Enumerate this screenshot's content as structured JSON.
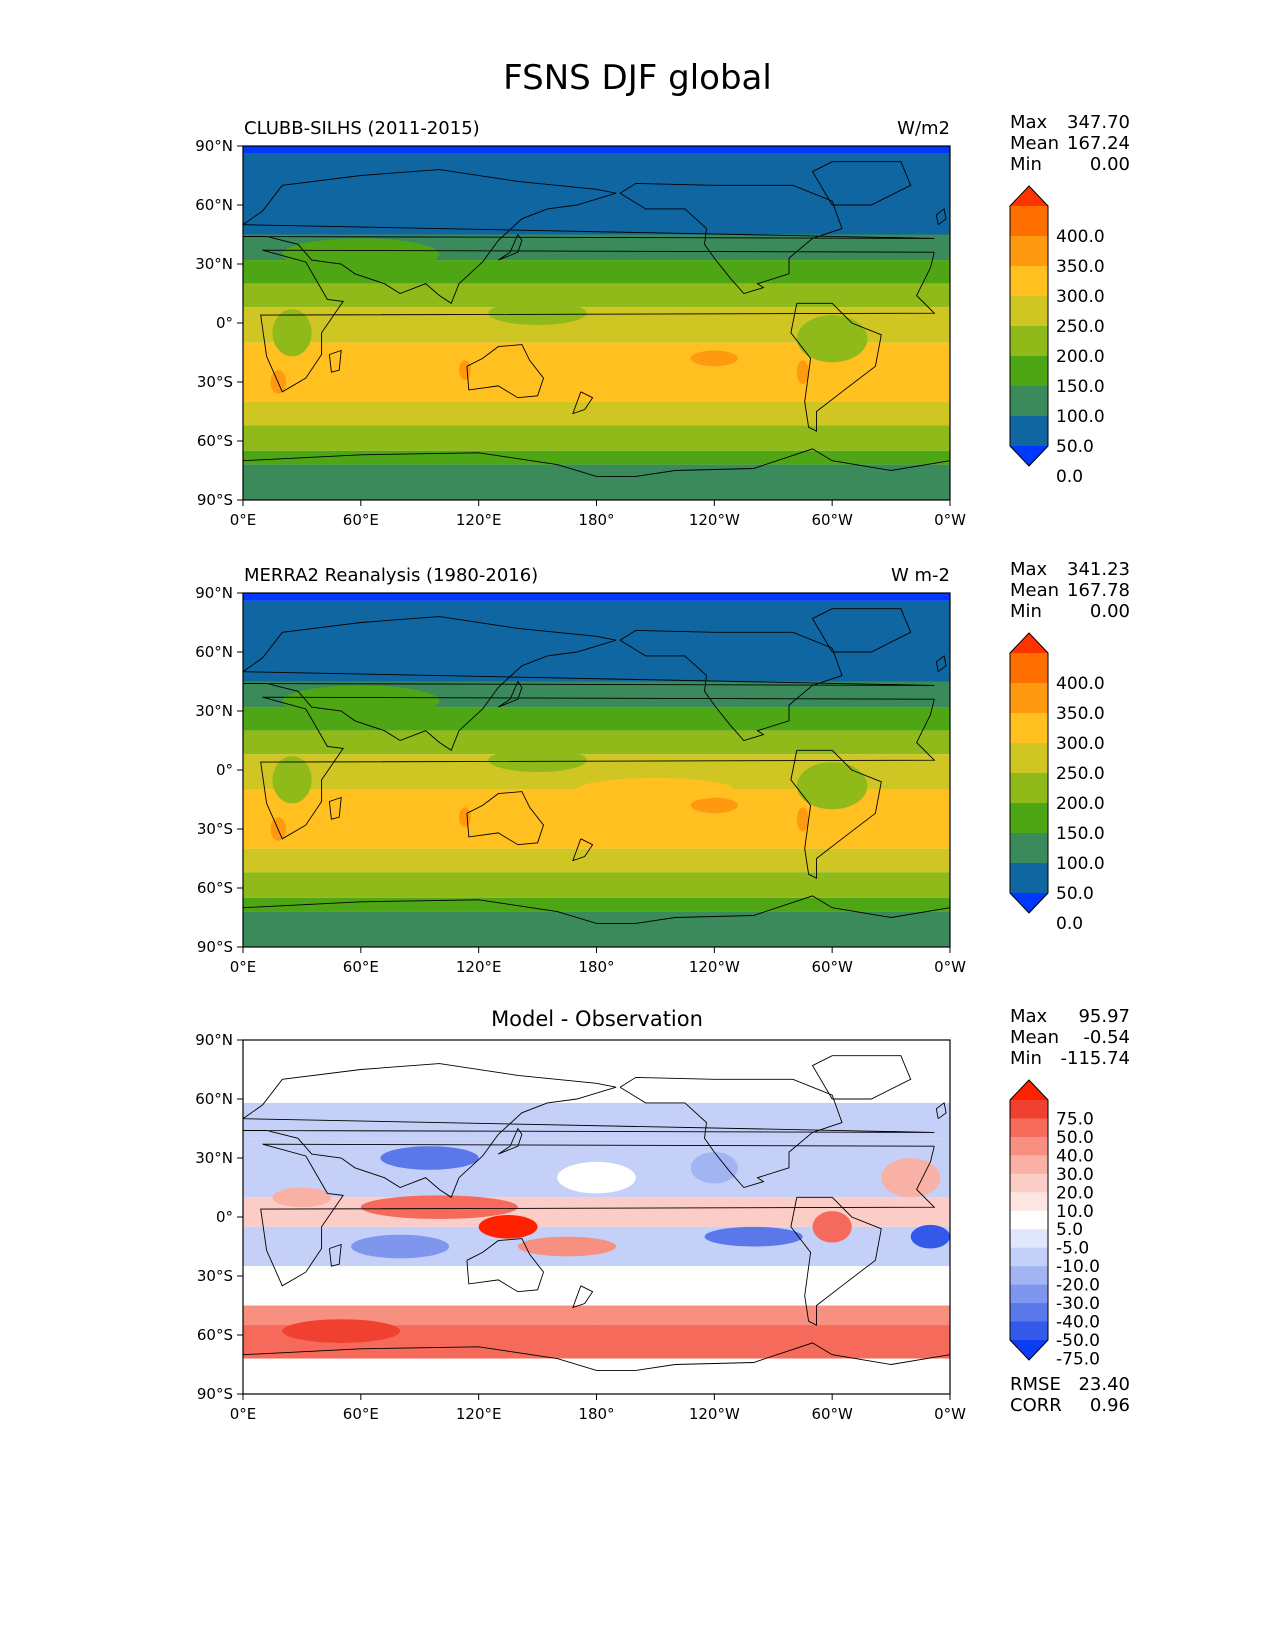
{
  "title": "FSNS DJF global",
  "lon_ticks": [
    "0°E",
    "60°E",
    "120°E",
    "180°",
    "120°W",
    "60°W",
    "0°W"
  ],
  "lat_ticks": [
    "90°N",
    "60°N",
    "30°N",
    "0°",
    "30°S",
    "60°S",
    "90°S"
  ],
  "panels": [
    {
      "left_title": "CLUBB-SILHS (2011-2015)",
      "center_title": "",
      "units": "W/m2",
      "stats": [
        {
          "label": "Max",
          "value": "347.70"
        },
        {
          "label": "Mean",
          "value": "167.24"
        },
        {
          "label": "Min",
          "value": "0.00"
        }
      ],
      "colorbar": {
        "labels": [
          "400.0",
          "350.0",
          "300.0",
          "250.0",
          "200.0",
          "150.0",
          "100.0",
          "50.0",
          "0.0"
        ],
        "colors": [
          "#ff3300",
          "#ff6f00",
          "#ff9a10",
          "#ffc020",
          "#cfc624",
          "#8fba1a",
          "#4ea615",
          "#3a8a5c",
          "#1066a0",
          "#0038ff"
        ]
      }
    },
    {
      "left_title": "MERRA2 Reanalysis (1980-2016)",
      "center_title": "",
      "units": "W m-2",
      "stats": [
        {
          "label": "Max",
          "value": "341.23"
        },
        {
          "label": "Mean",
          "value": "167.78"
        },
        {
          "label": "Min",
          "value": "0.00"
        }
      ],
      "colorbar": {
        "labels": [
          "400.0",
          "350.0",
          "300.0",
          "250.0",
          "200.0",
          "150.0",
          "100.0",
          "50.0",
          "0.0"
        ],
        "colors": [
          "#ff3300",
          "#ff6f00",
          "#ff9a10",
          "#ffc020",
          "#cfc624",
          "#8fba1a",
          "#4ea615",
          "#3a8a5c",
          "#1066a0",
          "#0038ff"
        ]
      }
    },
    {
      "left_title": "",
      "center_title": "Model - Observation",
      "units": "",
      "stats": [
        {
          "label": "Max",
          "value": "95.97"
        },
        {
          "label": "Mean",
          "value": "-0.54"
        },
        {
          "label": "Min",
          "value": "-115.74"
        }
      ],
      "extra_stats": [
        {
          "label": "RMSE",
          "value": "23.40"
        },
        {
          "label": "CORR",
          "value": "0.96"
        }
      ],
      "colorbar": {
        "labels": [
          "75.0",
          "50.0",
          "40.0",
          "30.0",
          "20.0",
          "10.0",
          "5.0",
          "-5.0",
          "-10.0",
          "-20.0",
          "-30.0",
          "-40.0",
          "-50.0",
          "-75.0"
        ],
        "colors": [
          "#ff2200",
          "#f04030",
          "#f56a5a",
          "#f79080",
          "#f9b0a5",
          "#fbcdc6",
          "#fde6e2",
          "#ffffff",
          "#e0e6fb",
          "#c5d0f8",
          "#a3b4f3",
          "#7f96ee",
          "#5a78ea",
          "#3458e8",
          "#0c3cf4"
        ]
      }
    }
  ]
}
